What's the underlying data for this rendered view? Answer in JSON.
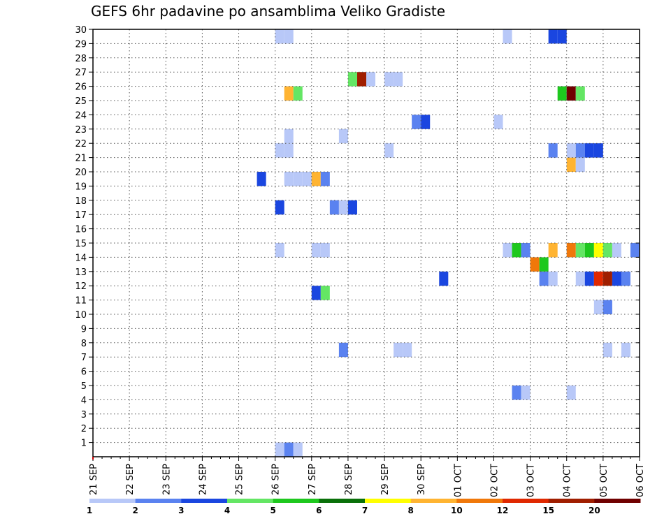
{
  "chart_data": {
    "type": "heatmap",
    "title": "GEFS 6hr padavine po ansamblima Veliko Gradiste",
    "xlabel": "",
    "ylabel": "",
    "x_ticks": [
      "21 SEP",
      "22 SEP",
      "23 SEP",
      "24 SEP",
      "25 SEP",
      "26 SEP",
      "27 SEP",
      "28 SEP",
      "29 SEP",
      "30 SEP",
      "01 OCT",
      "02 OCT",
      "03 OCT",
      "04 OCT",
      "05 OCT",
      "06 OCT"
    ],
    "y_ticks": [
      1,
      2,
      3,
      4,
      5,
      6,
      7,
      8,
      9,
      10,
      11,
      12,
      13,
      14,
      15,
      16,
      17,
      18,
      19,
      20,
      21,
      22,
      23,
      24,
      25,
      26,
      27,
      28,
      29,
      30
    ],
    "x_step_hours": 6,
    "ylim": [
      0,
      30
    ],
    "grid": true,
    "legend": {
      "position": "bottom",
      "colors": [
        "#b8c8f8",
        "#5a82f0",
        "#1a46e0",
        "#64e664",
        "#1ec81e",
        "#0a700a",
        "#ffff00",
        "#ffb432",
        "#f0780a",
        "#e02800",
        "#a01e00",
        "#700000"
      ],
      "labels": [
        "1",
        "2",
        "3",
        "4",
        "5",
        "6",
        "7",
        "8",
        "10",
        "12",
        "15",
        "20"
      ]
    },
    "cells": [
      {
        "t": "26 SEP 00",
        "m": 0,
        "c": 1
      },
      {
        "t": "26 SEP 06",
        "m": 0,
        "c": 2
      },
      {
        "t": "26 SEP 12",
        "m": 0,
        "c": 1
      },
      {
        "t": "27 SEP 18",
        "m": 7,
        "c": 2
      },
      {
        "t": "29 SEP 06",
        "m": 7,
        "c": 1
      },
      {
        "t": "29 SEP 12",
        "m": 7,
        "c": 1
      },
      {
        "t": "05 OCT 00",
        "m": 7,
        "c": 1
      },
      {
        "t": "05 OCT 12",
        "m": 7,
        "c": 1
      },
      {
        "t": "02 OCT 12",
        "m": 4,
        "c": 2
      },
      {
        "t": "02 OCT 18",
        "m": 4,
        "c": 1
      },
      {
        "t": "04 OCT 00",
        "m": 4,
        "c": 1
      },
      {
        "t": "04 OCT 18",
        "m": 10,
        "c": 1
      },
      {
        "t": "05 OCT 00",
        "m": 10,
        "c": 2
      },
      {
        "t": "27 SEP 00",
        "m": 11,
        "c": 3
      },
      {
        "t": "27 SEP 06",
        "m": 11,
        "c": 4
      },
      {
        "t": "30 SEP 12",
        "m": 12,
        "c": 3
      },
      {
        "t": "03 OCT 06",
        "m": 12,
        "c": 2
      },
      {
        "t": "03 OCT 12",
        "m": 12,
        "c": 1
      },
      {
        "t": "04 OCT 06",
        "m": 12,
        "c": 1
      },
      {
        "t": "04 OCT 12",
        "m": 12,
        "c": 3
      },
      {
        "t": "04 OCT 18",
        "m": 12,
        "c": 10
      },
      {
        "t": "05 OCT 00",
        "m": 12,
        "c": 11
      },
      {
        "t": "05 OCT 06",
        "m": 12,
        "c": 3
      },
      {
        "t": "05 OCT 12",
        "m": 12,
        "c": 2
      },
      {
        "t": "03 OCT 00",
        "m": 13,
        "c": 9
      },
      {
        "t": "03 OCT 06",
        "m": 13,
        "c": 5
      },
      {
        "t": "26 SEP 00",
        "m": 14,
        "c": 1
      },
      {
        "t": "27 SEP 00",
        "m": 14,
        "c": 1
      },
      {
        "t": "27 SEP 06",
        "m": 14,
        "c": 1
      },
      {
        "t": "02 OCT 06",
        "m": 14,
        "c": 1
      },
      {
        "t": "02 OCT 12",
        "m": 14,
        "c": 5
      },
      {
        "t": "02 OCT 18",
        "m": 14,
        "c": 2
      },
      {
        "t": "03 OCT 12",
        "m": 14,
        "c": 8
      },
      {
        "t": "04 OCT 00",
        "m": 14,
        "c": 9
      },
      {
        "t": "04 OCT 06",
        "m": 14,
        "c": 4
      },
      {
        "t": "04 OCT 12",
        "m": 14,
        "c": 5
      },
      {
        "t": "04 OCT 18",
        "m": 14,
        "c": 7
      },
      {
        "t": "05 OCT 00",
        "m": 14,
        "c": 4
      },
      {
        "t": "05 OCT 06",
        "m": 14,
        "c": 1
      },
      {
        "t": "05 OCT 18",
        "m": 14,
        "c": 2
      },
      {
        "t": "26 SEP 00",
        "m": 17,
        "c": 3
      },
      {
        "t": "27 SEP 12",
        "m": 17,
        "c": 2
      },
      {
        "t": "27 SEP 18",
        "m": 17,
        "c": 1
      },
      {
        "t": "28 SEP 00",
        "m": 17,
        "c": 3
      },
      {
        "t": "25 SEP 12",
        "m": 19,
        "c": 3
      },
      {
        "t": "26 SEP 06",
        "m": 19,
        "c": 1
      },
      {
        "t": "26 SEP 12",
        "m": 19,
        "c": 1
      },
      {
        "t": "26 SEP 18",
        "m": 19,
        "c": 1
      },
      {
        "t": "27 SEP 00",
        "m": 19,
        "c": 8
      },
      {
        "t": "27 SEP 06",
        "m": 19,
        "c": 2
      },
      {
        "t": "04 OCT 00",
        "m": 20,
        "c": 8
      },
      {
        "t": "04 OCT 06",
        "m": 20,
        "c": 1
      },
      {
        "t": "26 SEP 00",
        "m": 21,
        "c": 1
      },
      {
        "t": "26 SEP 06",
        "m": 21,
        "c": 1
      },
      {
        "t": "29 SEP 00",
        "m": 21,
        "c": 1
      },
      {
        "t": "03 OCT 12",
        "m": 21,
        "c": 2
      },
      {
        "t": "04 OCT 00",
        "m": 21,
        "c": 1
      },
      {
        "t": "04 OCT 06",
        "m": 21,
        "c": 2
      },
      {
        "t": "04 OCT 12",
        "m": 21,
        "c": 3
      },
      {
        "t": "04 OCT 18",
        "m": 21,
        "c": 3
      },
      {
        "t": "26 SEP 06",
        "m": 22,
        "c": 1
      },
      {
        "t": "27 SEP 18",
        "m": 22,
        "c": 1
      },
      {
        "t": "29 SEP 18",
        "m": 23,
        "c": 2
      },
      {
        "t": "30 SEP 00",
        "m": 23,
        "c": 3
      },
      {
        "t": "02 OCT 00",
        "m": 23,
        "c": 1
      },
      {
        "t": "26 SEP 06",
        "m": 25,
        "c": 8
      },
      {
        "t": "26 SEP 12",
        "m": 25,
        "c": 4
      },
      {
        "t": "03 OCT 18",
        "m": 25,
        "c": 5
      },
      {
        "t": "04 OCT 00",
        "m": 25,
        "c": 12
      },
      {
        "t": "04 OCT 06",
        "m": 25,
        "c": 4
      },
      {
        "t": "28 SEP 00",
        "m": 26,
        "c": 4
      },
      {
        "t": "28 SEP 06",
        "m": 26,
        "c": 11
      },
      {
        "t": "28 SEP 12",
        "m": 26,
        "c": 1
      },
      {
        "t": "29 SEP 00",
        "m": 26,
        "c": 1
      },
      {
        "t": "29 SEP 06",
        "m": 26,
        "c": 1
      },
      {
        "t": "26 SEP 00",
        "m": 29,
        "c": 1
      },
      {
        "t": "26 SEP 06",
        "m": 29,
        "c": 1
      },
      {
        "t": "02 OCT 06",
        "m": 29,
        "c": 1
      },
      {
        "t": "03 OCT 12",
        "m": 29,
        "c": 3
      },
      {
        "t": "03 OCT 18",
        "m": 29,
        "c": 3
      }
    ]
  }
}
